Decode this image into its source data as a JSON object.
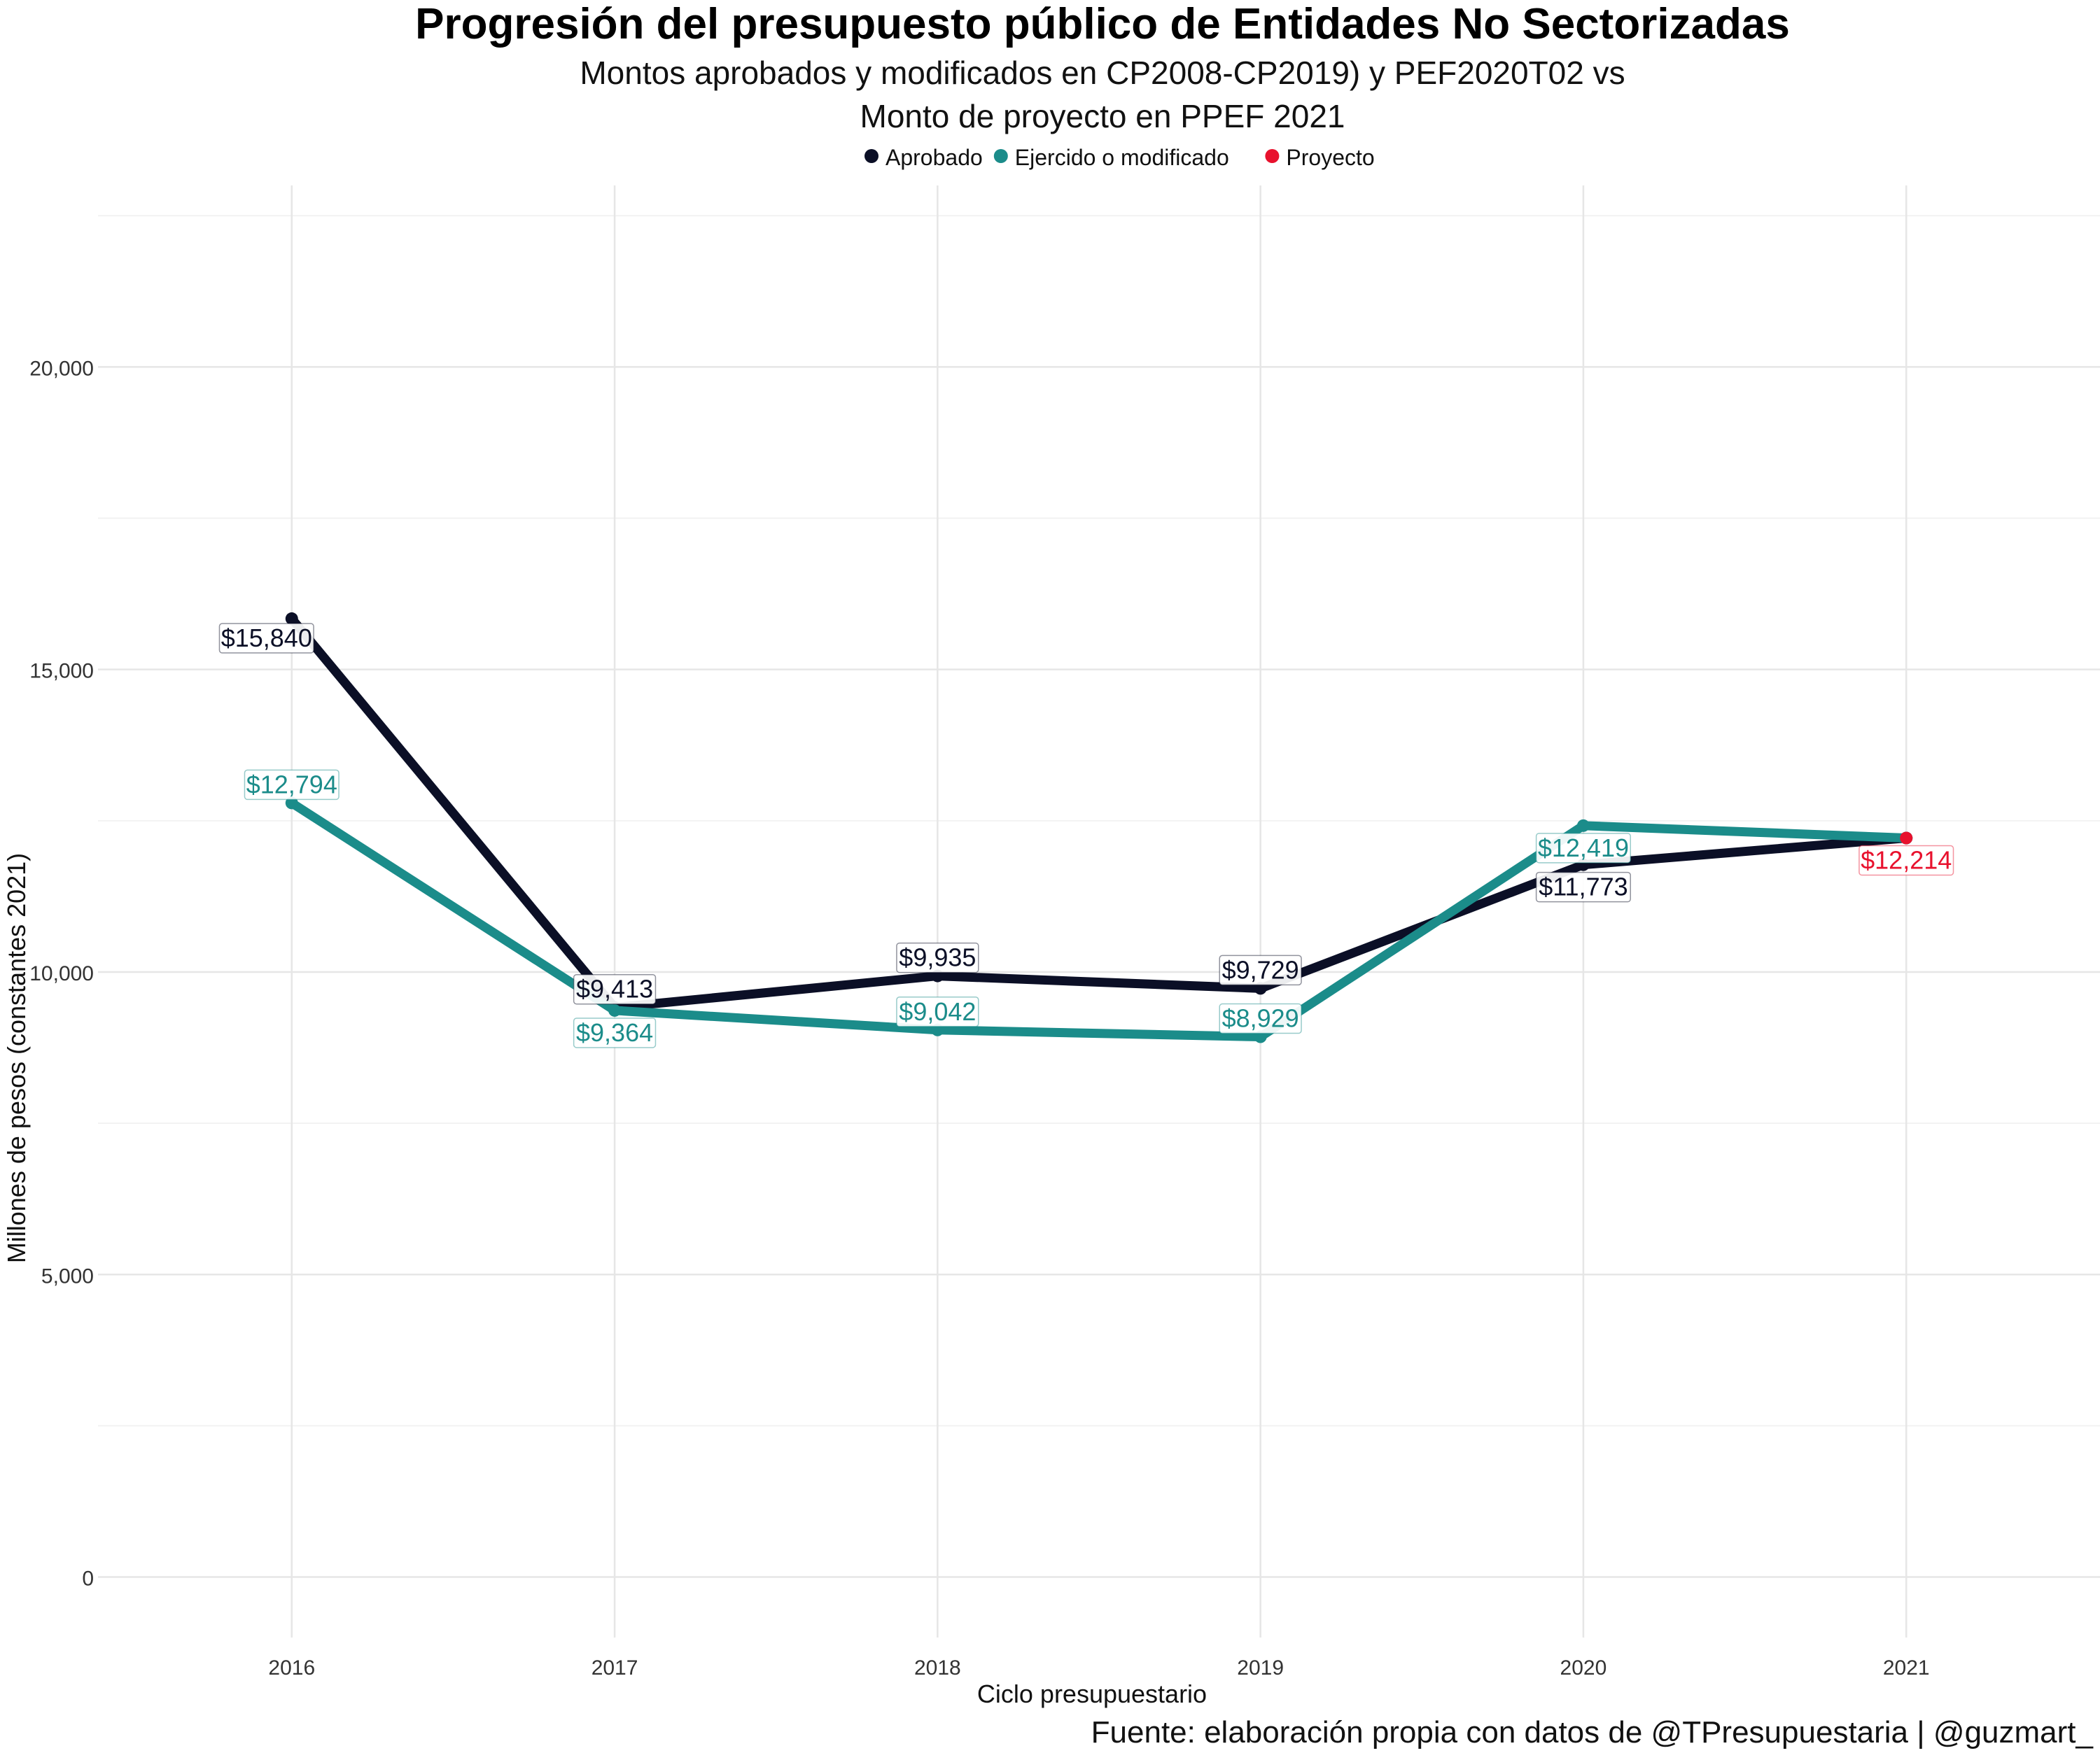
{
  "chart_data": {
    "type": "line",
    "title": "Progresión del presupuesto público de Entidades No Sectorizadas",
    "subtitle_line1": "Montos aprobados y modificados en CP2008-CP2019) y PEF2020T02 vs",
    "subtitle_line2": "Monto de proyecto en PPEF 2021",
    "xlabel": "Ciclo presupuestario",
    "ylabel": "Millones de pesos (constantes 2021)",
    "caption": "Fuente: elaboración propia con datos de @TPresupuestaria | @guzmart_",
    "x": [
      2016,
      2017,
      2018,
      2019,
      2020,
      2021
    ],
    "ylim": [
      -1000,
      23000
    ],
    "yticks": [
      0,
      5000,
      10000,
      15000,
      20000
    ],
    "ytick_labels": [
      "0",
      "5,000",
      "10,000",
      "15,000",
      "20,000"
    ],
    "grid": true,
    "legend_position": "top",
    "legend": [
      {
        "name": "Aprobado",
        "color": "#0b0f26"
      },
      {
        "name": "Ejercido o modificado",
        "color": "#1b8c8a"
      },
      {
        "name": "Proyecto",
        "color": "#e8112d"
      }
    ],
    "series": [
      {
        "name": "Aprobado",
        "color": "#0b0f26",
        "x": [
          2016,
          2017,
          2018,
          2019,
          2020,
          2021
        ],
        "values": [
          15840,
          9413,
          9935,
          9729,
          11773,
          12214
        ],
        "labels": [
          "$15,840",
          "$9,413",
          "$9,935",
          "$9,729",
          "$11,773",
          null
        ],
        "label_pos": [
          "below-left",
          "above",
          "above",
          "above",
          "below",
          null
        ]
      },
      {
        "name": "Ejercido o modificado",
        "color": "#1b8c8a",
        "x": [
          2016,
          2017,
          2018,
          2019,
          2020,
          2021
        ],
        "values": [
          12794,
          9364,
          9042,
          8929,
          12419,
          12214
        ],
        "labels": [
          "$12,794",
          "$9,364",
          "$9,042",
          "$8,929",
          "$12,419",
          null
        ],
        "label_pos": [
          "above",
          "below",
          "above",
          "above",
          "below",
          null
        ]
      },
      {
        "name": "Proyecto",
        "color": "#e8112d",
        "x": [
          2021
        ],
        "values": [
          12214
        ],
        "labels": [
          "$12,214"
        ],
        "label_pos": [
          "below"
        ]
      }
    ]
  }
}
